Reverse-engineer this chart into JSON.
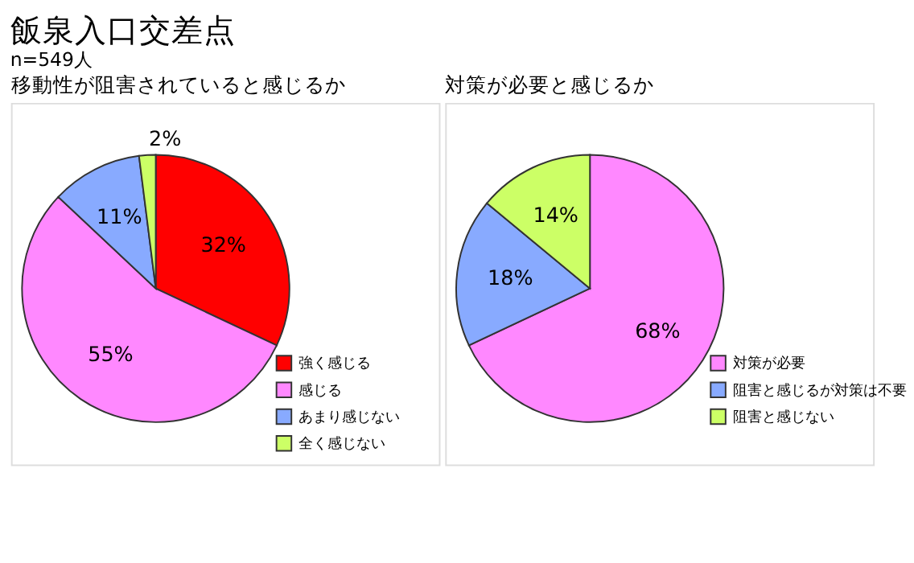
{
  "chart_data": [
    {
      "type": "pie",
      "title": "移動性が阻害されていると感じるか",
      "annotations": [
        "飯泉入口交差点",
        "n=549人"
      ],
      "categories": [
        "強く感じる",
        "感じる",
        "あまり感じない",
        "全く感じない"
      ],
      "values": [
        32,
        55,
        11,
        2
      ],
      "colors": [
        "#ff0000",
        "#ff88ff",
        "#88aaff",
        "#ccff66"
      ],
      "value_labels": [
        "32%",
        "55%",
        "11%",
        "2%"
      ],
      "legend": "bottom right"
    },
    {
      "type": "pie",
      "title": "対策が必要と感じるか",
      "categories": [
        "対策が必要",
        "阻害と感じるが対策は不要",
        "阻害と感じない"
      ],
      "values": [
        68,
        18,
        14
      ],
      "colors": [
        "#ff88ff",
        "#88aaff",
        "#ccff66"
      ],
      "value_labels": [
        "68%",
        "18%",
        "14%"
      ],
      "legend": "bottom right"
    }
  ]
}
